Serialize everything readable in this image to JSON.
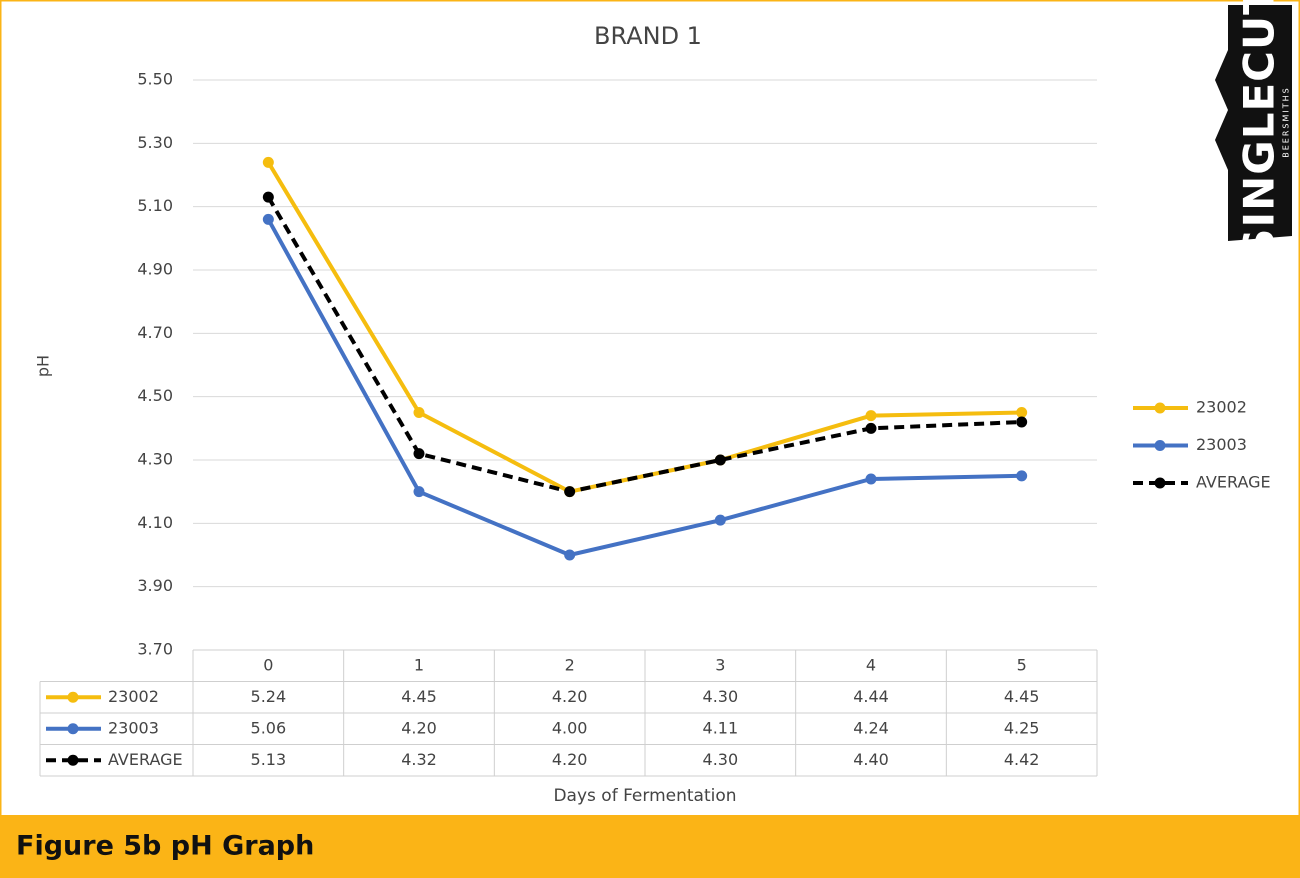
{
  "chart_data": {
    "type": "line",
    "title": "BRAND 1",
    "y_label": "pH",
    "x_label": "Days of Fermentation",
    "categories": [
      "0",
      "1",
      "2",
      "3",
      "4",
      "5"
    ],
    "series": [
      {
        "name": "23002",
        "color": "#f5bd0f",
        "line_style": "solid",
        "values": [
          5.24,
          4.45,
          4.2,
          4.3,
          4.44,
          4.45
        ],
        "value_labels": [
          "5.24",
          "4.45",
          "4.20",
          "4.30",
          "4.44",
          "4.45"
        ]
      },
      {
        "name": "23003",
        "color": "#4472c4",
        "line_style": "solid",
        "values": [
          5.06,
          4.2,
          4.0,
          4.11,
          4.24,
          4.25
        ],
        "value_labels": [
          "5.06",
          "4.20",
          "4.00",
          "4.11",
          "4.24",
          "4.25"
        ]
      },
      {
        "name": "AVERAGE",
        "color": "#000000",
        "line_style": "dashed",
        "values": [
          5.13,
          4.32,
          4.2,
          4.3,
          4.4,
          4.42
        ],
        "value_labels": [
          "5.13",
          "4.32",
          "4.20",
          "4.30",
          "4.40",
          "4.42"
        ]
      }
    ],
    "ylim": [
      3.7,
      5.5
    ],
    "yticks": [
      {
        "value": 3.7,
        "label": "3.70"
      },
      {
        "value": 3.9,
        "label": "3.90"
      },
      {
        "value": 4.1,
        "label": "4.10"
      },
      {
        "value": 4.3,
        "label": "4.30"
      },
      {
        "value": 4.5,
        "label": "4.50"
      },
      {
        "value": 4.7,
        "label": "4.70"
      },
      {
        "value": 4.9,
        "label": "4.90"
      },
      {
        "value": 5.1,
        "label": "5.10"
      },
      {
        "value": 5.3,
        "label": "5.30"
      },
      {
        "value": 5.5,
        "label": "5.50"
      }
    ],
    "grid": true,
    "legend": "right",
    "data_table": true
  },
  "logo": {
    "name": "SINGLECUT",
    "tagline": "BEERSMITHS"
  },
  "caption": "Figure 5b pH Graph"
}
